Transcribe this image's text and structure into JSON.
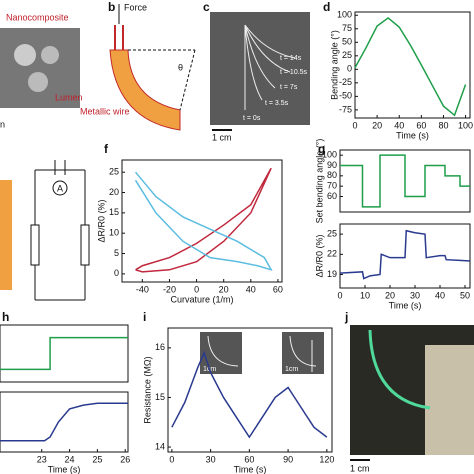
{
  "figure": {
    "panel_labels": {
      "b": "b",
      "c": "c",
      "d": "d",
      "f": "f",
      "g": "g",
      "h": "h",
      "i": "i",
      "j": "j"
    },
    "a": {
      "nanocomposite": "Nanocomposite",
      "lumen": "Lumen",
      "metallic_wire": "Metallic wire",
      "fragment": "n"
    },
    "b": {
      "force": "Force",
      "angle": "θ"
    },
    "c": {
      "times": [
        "t = 14s",
        "t = 10.5s",
        "t = 7s",
        "t = 3.5s",
        "t = 0s"
      ],
      "scale": "1 cm"
    },
    "e": {
      "ammeter": "A"
    },
    "i": {
      "inset_scales": [
        "1cm",
        "1cm"
      ]
    },
    "j": {
      "scale": "1 cm"
    }
  },
  "chart_data": [
    {
      "type": "line",
      "ylabel": "Bending angle (°)",
      "xlabel": "Time (s)",
      "x": [
        0,
        10,
        20,
        30,
        40,
        50,
        60,
        70,
        80,
        90,
        100
      ],
      "series": [
        {
          "color": "#1f9e4a",
          "values": [
            3,
            40,
            80,
            95,
            78,
            45,
            8,
            -30,
            -68,
            -85,
            -28
          ]
        }
      ],
      "xlim": [
        0,
        104
      ],
      "ylim": [
        -90,
        106
      ],
      "xticks": [
        0,
        20,
        40,
        60,
        80,
        100
      ],
      "yticks": [
        -75,
        -50,
        -25,
        0,
        25,
        50,
        75,
        100
      ]
    },
    {
      "type": "line",
      "ylabel": "ΔR/R0 (%)",
      "xlabel": "Curvature (1/m)",
      "series": [
        {
          "color": "#c0283c",
          "x": [
            -45,
            -40,
            -20,
            0,
            20,
            40,
            55,
            40,
            20,
            0,
            -20,
            -40,
            -45
          ],
          "values": [
            1,
            0.5,
            1,
            3,
            8,
            15,
            26,
            17,
            12,
            7.5,
            4,
            2,
            1
          ]
        },
        {
          "color": "#5bbde0",
          "x": [
            -45,
            -30,
            -10,
            10,
            30,
            50,
            55,
            45,
            30,
            10,
            -10,
            -30,
            -45
          ],
          "values": [
            25,
            19,
            14,
            11,
            8,
            4,
            1,
            2,
            3,
            4,
            8,
            15,
            23
          ]
        }
      ],
      "xlim": [
        -55,
        63
      ],
      "ylim": [
        -2,
        28
      ],
      "xticks": [
        -40,
        -20,
        0,
        20,
        40,
        60
      ],
      "yticks": [
        0,
        5,
        10,
        15,
        20,
        25
      ]
    },
    {
      "type": "line",
      "ylabel": "Set bending angle (°)",
      "x": [
        0,
        9,
        9,
        16,
        16,
        26,
        26,
        34,
        34,
        42,
        42,
        48,
        48,
        52
      ],
      "series": [
        {
          "color": "#1f9e4a",
          "values": [
            90,
            90,
            50,
            50,
            100,
            100,
            60,
            60,
            90,
            90,
            80,
            80,
            70,
            70
          ]
        }
      ],
      "xlim": [
        0,
        52
      ],
      "ylim": [
        45,
        105
      ],
      "yticks": [
        60,
        70,
        80,
        90,
        100
      ]
    },
    {
      "type": "line",
      "ylabel": "ΔR/R0 (%)",
      "xlabel": "Time (s)",
      "x": [
        0,
        9,
        9.5,
        12,
        16,
        16.5,
        20,
        26,
        26.5,
        30,
        34,
        34.5,
        40,
        42,
        42.5,
        48,
        52
      ],
      "series": [
        {
          "color": "#2a3a8f",
          "values": [
            19.2,
            19.4,
            18.4,
            18.8,
            19,
            22,
            21.5,
            21.5,
            25.5,
            25.2,
            25,
            21.5,
            21.8,
            21.8,
            21.2,
            21.1,
            21
          ]
        }
      ],
      "xlim": [
        0,
        52
      ],
      "ylim": [
        17,
        26.5
      ],
      "xticks": [
        0,
        10,
        20,
        30,
        40,
        50
      ],
      "yticks": [
        19,
        22,
        25
      ]
    },
    {
      "type": "line",
      "x": [
        21.5,
        23.3,
        23.3,
        26.1
      ],
      "series": [
        {
          "color": "#1f9e4a",
          "values": [
            0,
            0,
            1,
            1
          ]
        }
      ],
      "xlim": [
        21.5,
        26.1
      ],
      "ylim": [
        -0.4,
        1.4
      ]
    },
    {
      "type": "line",
      "xlabel": "Time (s)",
      "x": [
        21.5,
        23.1,
        23.3,
        23.6,
        24,
        24.5,
        25,
        26.1
      ],
      "series": [
        {
          "color": "#2a3a8f",
          "values": [
            0,
            0,
            0.1,
            0.5,
            0.85,
            0.95,
            1,
            1
          ]
        }
      ],
      "xlim": [
        21.5,
        26.1
      ],
      "ylim": [
        -0.3,
        1.3
      ],
      "xticks": [
        23,
        24,
        25,
        26
      ]
    },
    {
      "type": "line",
      "ylabel": "Resistance (MΩ)",
      "xlabel": "Time (s)",
      "x": [
        0,
        10,
        20,
        25,
        30,
        40,
        50,
        60,
        70,
        80,
        90,
        100,
        110,
        120
      ],
      "series": [
        {
          "color": "#2a3a8f",
          "values": [
            14.4,
            14.9,
            15.6,
            15.9,
            15.5,
            15.0,
            14.6,
            14.2,
            14.6,
            15.0,
            15.2,
            14.8,
            14.4,
            14.2
          ]
        }
      ],
      "xlim": [
        -3,
        124
      ],
      "ylim": [
        13.9,
        16.4
      ],
      "xticks": [
        0,
        30,
        60,
        90,
        120
      ],
      "yticks": [
        14,
        15,
        16
      ]
    }
  ]
}
